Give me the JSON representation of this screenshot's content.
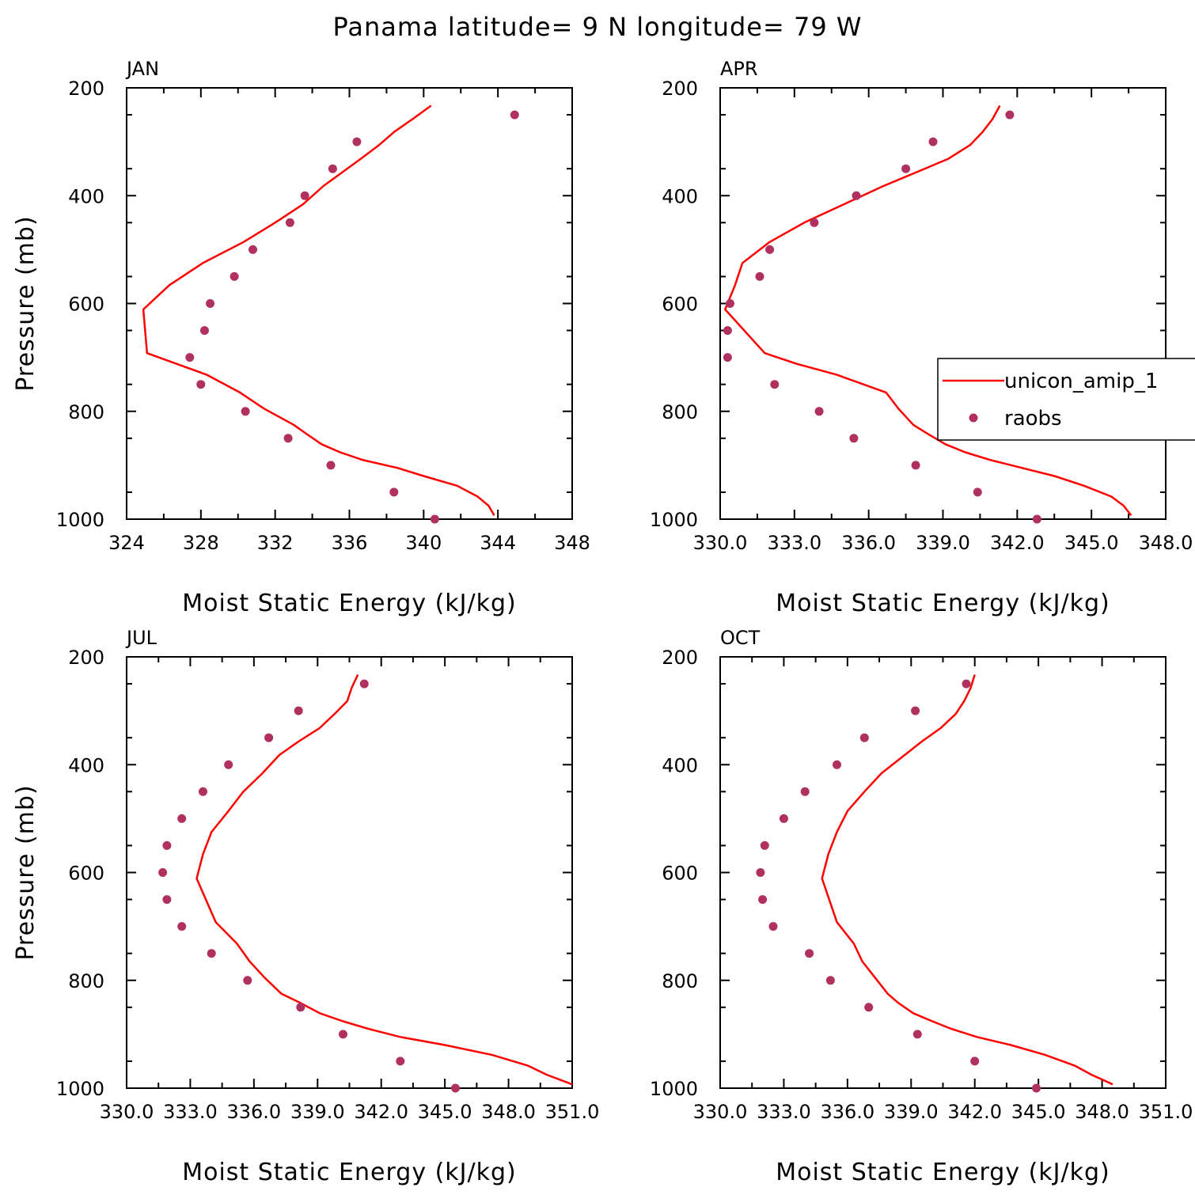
{
  "title": "Panama  latitude= 9 N longitude= 79 W",
  "colors": {
    "model": "#ff0000",
    "obs": "#b03060",
    "axes": "#000000"
  },
  "chart_data": [
    {
      "type": "line",
      "panel_label": "JAN",
      "xlabel": "Moist Static Energy (kJ/kg)",
      "ylabel": "Pressure (mb)",
      "xlim": [
        324,
        348
      ],
      "ylim": [
        1000,
        200
      ],
      "x_tick_values": [
        324,
        328,
        332,
        336,
        340,
        344,
        348
      ],
      "x_tick_labels": [
        "324",
        "328",
        "332",
        "336",
        "340",
        "344",
        "348"
      ],
      "y_tick_values": [
        200,
        400,
        600,
        800,
        1000
      ],
      "y_tick_labels": [
        "200",
        "400",
        "600",
        "800",
        "1000"
      ],
      "legend": null,
      "series": [
        {
          "name": "unicon_amip_1",
          "kind": "line",
          "points": [
            [
              343.8,
              993
            ],
            [
              343.5,
              975
            ],
            [
              342.9,
              958
            ],
            [
              341.8,
              938
            ],
            [
              340.0,
              920
            ],
            [
              338.6,
              905
            ],
            [
              336.7,
              890
            ],
            [
              335.5,
              876
            ],
            [
              334.5,
              861
            ],
            [
              333.7,
              842
            ],
            [
              333.0,
              825
            ],
            [
              331.4,
              795
            ],
            [
              330.1,
              765
            ],
            [
              328.3,
              732
            ],
            [
              326.7,
              712
            ],
            [
              325.1,
              692
            ],
            [
              324.9,
              611
            ],
            [
              326.3,
              566
            ],
            [
              328.1,
              525
            ],
            [
              330.3,
              486
            ],
            [
              332.0,
              450
            ],
            [
              333.5,
              416
            ],
            [
              334.6,
              382
            ],
            [
              335.6,
              357
            ],
            [
              336.6,
              332
            ],
            [
              337.6,
              306
            ],
            [
              338.4,
              282
            ],
            [
              339.4,
              258
            ],
            [
              340.4,
              233
            ]
          ]
        },
        {
          "name": "raobs",
          "kind": "scatter",
          "points": [
            [
              344.9,
              250
            ],
            [
              336.4,
              300
            ],
            [
              335.1,
              350
            ],
            [
              333.6,
              400
            ],
            [
              332.8,
              450
            ],
            [
              330.8,
              500
            ],
            [
              329.8,
              550
            ],
            [
              328.5,
              600
            ],
            [
              328.2,
              650
            ],
            [
              327.4,
              700
            ],
            [
              328.0,
              750
            ],
            [
              330.4,
              800
            ],
            [
              332.7,
              850
            ],
            [
              335.0,
              900
            ],
            [
              338.4,
              950
            ],
            [
              340.6,
              1000
            ]
          ]
        }
      ]
    },
    {
      "type": "line",
      "panel_label": "APR",
      "xlabel": "Moist Static Energy (kJ/kg)",
      "ylabel": "",
      "xlim": [
        330,
        348
      ],
      "ylim": [
        1000,
        200
      ],
      "x_tick_values": [
        330,
        333,
        336,
        339,
        342,
        345,
        348
      ],
      "x_tick_labels": [
        "330.0",
        "333.0",
        "336.0",
        "339.0",
        "342.0",
        "345.0",
        "348.0"
      ],
      "y_tick_values": [
        200,
        400,
        600,
        800,
        1000
      ],
      "y_tick_labels": [
        "200",
        "400",
        "600",
        "800",
        "1000"
      ],
      "legend": {
        "position": "right",
        "entries": [
          "unicon_amip_1",
          "raobs"
        ]
      },
      "series": [
        {
          "name": "unicon_amip_1",
          "kind": "line",
          "points": [
            [
              346.6,
              993
            ],
            [
              346.3,
              975
            ],
            [
              345.8,
              958
            ],
            [
              344.7,
              938
            ],
            [
              343.5,
              920
            ],
            [
              342.2,
              905
            ],
            [
              340.9,
              890
            ],
            [
              339.9,
              876
            ],
            [
              339.1,
              861
            ],
            [
              338.4,
              842
            ],
            [
              337.8,
              825
            ],
            [
              337.2,
              795
            ],
            [
              336.7,
              765
            ],
            [
              334.7,
              732
            ],
            [
              333.1,
              712
            ],
            [
              331.8,
              692
            ],
            [
              330.2,
              611
            ],
            [
              330.6,
              566
            ],
            [
              330.9,
              525
            ],
            [
              332.0,
              486
            ],
            [
              333.4,
              450
            ],
            [
              335.0,
              416
            ],
            [
              336.6,
              382
            ],
            [
              337.9,
              357
            ],
            [
              339.2,
              332
            ],
            [
              340.1,
              306
            ],
            [
              340.6,
              282
            ],
            [
              341.0,
              258
            ],
            [
              341.3,
              233
            ]
          ]
        },
        {
          "name": "raobs",
          "kind": "scatter",
          "points": [
            [
              341.7,
              250
            ],
            [
              338.6,
              300
            ],
            [
              337.5,
              350
            ],
            [
              335.5,
              400
            ],
            [
              333.8,
              450
            ],
            [
              332.0,
              500
            ],
            [
              331.6,
              550
            ],
            [
              330.4,
              600
            ],
            [
              330.3,
              650
            ],
            [
              330.3,
              700
            ],
            [
              332.2,
              750
            ],
            [
              334.0,
              800
            ],
            [
              335.4,
              850
            ],
            [
              337.9,
              900
            ],
            [
              340.4,
              950
            ],
            [
              342.8,
              1000
            ]
          ]
        }
      ]
    },
    {
      "type": "line",
      "panel_label": "JUL",
      "xlabel": "Moist Static Energy (kJ/kg)",
      "ylabel": "Pressure (mb)",
      "xlim": [
        330,
        351
      ],
      "ylim": [
        1000,
        200
      ],
      "x_tick_values": [
        330,
        333,
        336,
        339,
        342,
        345,
        348,
        351
      ],
      "x_tick_labels": [
        "330.0",
        "333.0",
        "336.0",
        "339.0",
        "342.0",
        "345.0",
        "348.0",
        "351.0"
      ],
      "y_tick_values": [
        200,
        400,
        600,
        800,
        1000
      ],
      "y_tick_labels": [
        "200",
        "400",
        "600",
        "800",
        "1000"
      ],
      "legend": null,
      "series": [
        {
          "name": "unicon_amip_1",
          "kind": "line",
          "points": [
            [
              351.0,
              993
            ],
            [
              349.8,
              975
            ],
            [
              348.9,
              958
            ],
            [
              347.2,
              938
            ],
            [
              345.0,
              920
            ],
            [
              342.9,
              905
            ],
            [
              341.4,
              890
            ],
            [
              340.2,
              876
            ],
            [
              339.1,
              861
            ],
            [
              338.2,
              842
            ],
            [
              337.3,
              825
            ],
            [
              336.5,
              795
            ],
            [
              335.8,
              765
            ],
            [
              335.2,
              732
            ],
            [
              334.7,
              712
            ],
            [
              334.2,
              692
            ],
            [
              333.3,
              611
            ],
            [
              333.6,
              566
            ],
            [
              334.0,
              525
            ],
            [
              334.8,
              486
            ],
            [
              335.5,
              450
            ],
            [
              336.4,
              416
            ],
            [
              337.2,
              382
            ],
            [
              338.1,
              357
            ],
            [
              339.1,
              332
            ],
            [
              339.8,
              306
            ],
            [
              340.4,
              282
            ],
            [
              340.6,
              258
            ],
            [
              340.9,
              233
            ]
          ]
        },
        {
          "name": "raobs",
          "kind": "scatter",
          "points": [
            [
              341.2,
              250
            ],
            [
              338.1,
              300
            ],
            [
              336.7,
              350
            ],
            [
              334.8,
              400
            ],
            [
              333.6,
              450
            ],
            [
              332.6,
              500
            ],
            [
              331.9,
              550
            ],
            [
              331.7,
              600
            ],
            [
              331.9,
              650
            ],
            [
              332.6,
              700
            ],
            [
              334.0,
              750
            ],
            [
              335.7,
              800
            ],
            [
              338.2,
              850
            ],
            [
              340.2,
              900
            ],
            [
              342.9,
              950
            ],
            [
              345.5,
              1000
            ]
          ]
        }
      ]
    },
    {
      "type": "line",
      "panel_label": "OCT",
      "xlabel": "Moist Static Energy (kJ/kg)",
      "ylabel": "",
      "xlim": [
        330,
        351
      ],
      "ylim": [
        1000,
        200
      ],
      "x_tick_values": [
        330,
        333,
        336,
        339,
        342,
        345,
        348,
        351
      ],
      "x_tick_labels": [
        "330.0",
        "333.0",
        "336.0",
        "339.0",
        "342.0",
        "345.0",
        "348.0",
        "351.0"
      ],
      "y_tick_values": [
        200,
        400,
        600,
        800,
        1000
      ],
      "y_tick_labels": [
        "200",
        "400",
        "600",
        "800",
        "1000"
      ],
      "legend": null,
      "series": [
        {
          "name": "unicon_amip_1",
          "kind": "line",
          "points": [
            [
              348.5,
              993
            ],
            [
              347.5,
              975
            ],
            [
              346.7,
              958
            ],
            [
              345.3,
              938
            ],
            [
              343.7,
              920
            ],
            [
              342.1,
              905
            ],
            [
              340.9,
              890
            ],
            [
              340.0,
              876
            ],
            [
              339.1,
              861
            ],
            [
              338.4,
              842
            ],
            [
              337.9,
              825
            ],
            [
              337.3,
              795
            ],
            [
              336.7,
              765
            ],
            [
              336.3,
              732
            ],
            [
              335.9,
              712
            ],
            [
              335.5,
              692
            ],
            [
              334.8,
              611
            ],
            [
              335.1,
              566
            ],
            [
              335.5,
              525
            ],
            [
              336.0,
              486
            ],
            [
              336.8,
              450
            ],
            [
              337.6,
              416
            ],
            [
              338.7,
              382
            ],
            [
              339.5,
              357
            ],
            [
              340.4,
              332
            ],
            [
              341.1,
              306
            ],
            [
              341.5,
              282
            ],
            [
              341.8,
              258
            ],
            [
              342.0,
              233
            ]
          ]
        },
        {
          "name": "raobs",
          "kind": "scatter",
          "points": [
            [
              341.6,
              250
            ],
            [
              339.2,
              300
            ],
            [
              336.8,
              350
            ],
            [
              335.5,
              400
            ],
            [
              334.0,
              450
            ],
            [
              333.0,
              500
            ],
            [
              332.1,
              550
            ],
            [
              331.9,
              600
            ],
            [
              332.0,
              650
            ],
            [
              332.5,
              700
            ],
            [
              334.2,
              750
            ],
            [
              335.2,
              800
            ],
            [
              337.0,
              850
            ],
            [
              339.3,
              900
            ],
            [
              342.0,
              950
            ],
            [
              344.9,
              1000
            ]
          ]
        }
      ]
    }
  ]
}
